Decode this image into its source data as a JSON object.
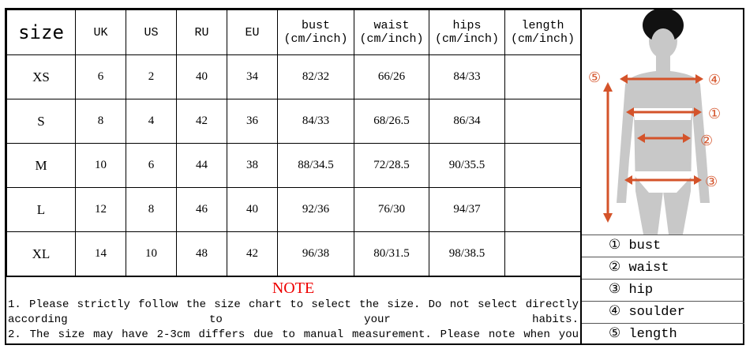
{
  "headers": [
    "size",
    "UK",
    "US",
    "RU",
    "EU",
    "bust\n(cm/inch)",
    "waist\n(cm/inch)",
    "hips\n(cm/inch)",
    "length\n(cm/inch)"
  ],
  "rows": [
    [
      "XS",
      "6",
      "2",
      "40",
      "34",
      "82/32",
      "66/26",
      "84/33",
      ""
    ],
    [
      "S",
      "8",
      "4",
      "42",
      "36",
      "84/33",
      "68/26.5",
      "86/34",
      ""
    ],
    [
      "M",
      "10",
      "6",
      "44",
      "38",
      "88/34.5",
      "72/28.5",
      "90/35.5",
      ""
    ],
    [
      "L",
      "12",
      "8",
      "46",
      "40",
      "92/36",
      "76/30",
      "94/37",
      ""
    ],
    [
      "XL",
      "14",
      "10",
      "48",
      "42",
      "96/38",
      "80/31.5",
      "98/38.5",
      ""
    ]
  ],
  "note": {
    "title": "NOTE",
    "line1": "1. Please strictly follow the size chart to select the size. Do not select directly",
    "line2": "according to your habits.",
    "line3": "2. The size may have 2-3cm differs due to manual measurement. Please note when you"
  },
  "figure": {
    "markers": [
      "①",
      "②",
      "③",
      "④",
      "⑤"
    ],
    "arrow_color": "#d4532a",
    "body_color": "#c8c8c8"
  },
  "legend": [
    "① bust",
    "② waist",
    "③ hip",
    "④ soulder",
    "⑤ length"
  ]
}
